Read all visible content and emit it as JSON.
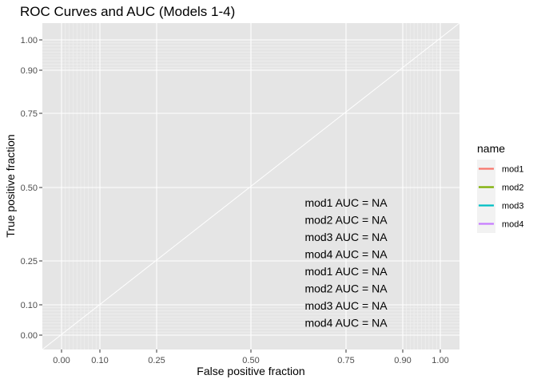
{
  "chart_data": {
    "type": "line",
    "title": "ROC Curves and AUC (Models 1-4)",
    "xlabel": "False positive fraction",
    "ylabel": "True positive fraction",
    "xlim": [
      -0.05,
      1.05
    ],
    "ylim": [
      -0.035,
      1.035
    ],
    "x_scale": "probit-like (ROC style)",
    "x_ticks": [
      0.0,
      0.1,
      0.25,
      0.5,
      0.75,
      0.9,
      1.0
    ],
    "x_tick_labels": [
      "0.00",
      "0.10",
      "0.25",
      "0.50",
      "0.75",
      "0.90",
      "1.00"
    ],
    "y_ticks": [
      0.0,
      0.1,
      0.25,
      0.5,
      0.75,
      0.9,
      1.0
    ],
    "y_tick_labels": [
      "0.00",
      "0.10",
      "0.25",
      "0.50",
      "0.75",
      "0.90",
      "1.00"
    ],
    "grid": true,
    "background_color": "#e5e5e5",
    "grid_color": "#ffffff",
    "reference_line": {
      "x": [
        -0.05,
        1.05
      ],
      "y": [
        -0.035,
        1.035
      ]
    },
    "legend": {
      "title": "name",
      "position": "right",
      "entries": [
        {
          "label": "mod1",
          "color": "#f8766d"
        },
        {
          "label": "mod2",
          "color": "#7cae00"
        },
        {
          "label": "mod3",
          "color": "#00bfc4"
        },
        {
          "label": "mod4",
          "color": "#c77cff"
        }
      ]
    },
    "series": [
      {
        "name": "mod1",
        "values": []
      },
      {
        "name": "mod2",
        "values": []
      },
      {
        "name": "mod3",
        "values": []
      },
      {
        "name": "mod4",
        "values": []
      }
    ],
    "annotations": [
      "mod1 AUC = NA",
      "mod2 AUC = NA",
      "mod3 AUC = NA",
      "mod4 AUC = NA",
      "mod1 AUC = NA",
      "mod2 AUC = NA",
      "mod3 AUC = NA",
      "mod4 AUC = NA"
    ]
  }
}
